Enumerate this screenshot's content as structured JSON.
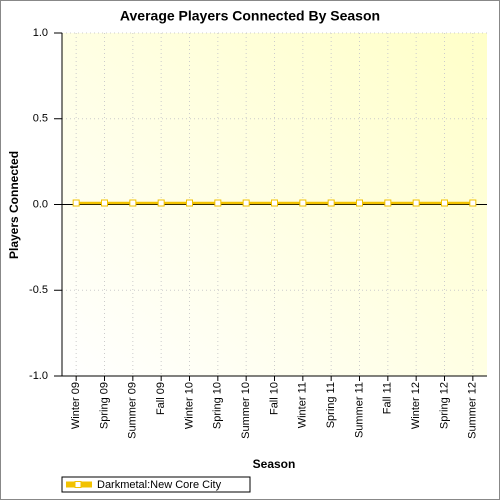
{
  "chart_data": {
    "type": "line",
    "title": "Average Players Connected By Season",
    "x_label": "Season",
    "y_label": "Players Connected",
    "categories": [
      "Winter 09",
      "Spring 09",
      "Summer 09",
      "Fall 09",
      "Winter 10",
      "Spring 10",
      "Summer 10",
      "Fall 10",
      "Winter 11",
      "Spring 11",
      "Summer 11",
      "Fall 11",
      "Winter 12",
      "Spring 12",
      "Summer 12"
    ],
    "series": [
      {
        "name": "Darkmetal:New Core City",
        "color": "#f2c200",
        "values": [
          0,
          0,
          0,
          0,
          0,
          0,
          0,
          0,
          0,
          0,
          0,
          0,
          0,
          0,
          0
        ]
      }
    ],
    "ylim": [
      -1,
      1
    ],
    "yticks": [
      {
        "value": -1,
        "label": "-1.0"
      },
      {
        "value": -0.5,
        "label": "-0.5"
      },
      {
        "value": 0,
        "label": "0.0"
      },
      {
        "value": 0.5,
        "label": "0.5"
      },
      {
        "value": 1,
        "label": "1.0"
      }
    ],
    "grid": true
  }
}
